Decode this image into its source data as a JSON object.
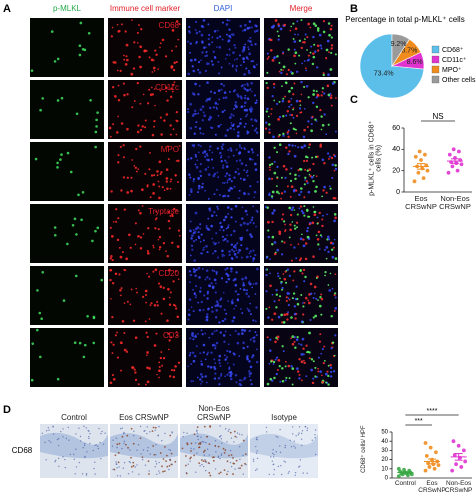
{
  "panel_labels": [
    "A",
    "B",
    "C",
    "D"
  ],
  "panel_a": {
    "column_headers": [
      "p-MLKL",
      "Immune cell marker",
      "DAPI",
      "Merge"
    ],
    "column_colors": [
      "#22a84a",
      "#e0202a",
      "#2f5fd8",
      "#e0202a"
    ],
    "row_markers": [
      "CD68",
      "CD11c",
      "MPO",
      "Tryptase",
      "CD20",
      "CD3"
    ]
  },
  "panel_d": {
    "row_label": "CD68",
    "column_headers": [
      "Control",
      "Eos CRSwNP",
      "Non-Eos CRSwNP",
      "Isotype"
    ]
  },
  "chart_data": [
    {
      "type": "pie",
      "title": "Percentage in total p-MLKL⁺ cells",
      "categories": [
        "CD68⁺",
        "CD11c⁺",
        "MPO⁺",
        "Other cells"
      ],
      "values": [
        73.4,
        8.6,
        8.7,
        9.2
      ],
      "value_labels": [
        "73.4%",
        "8.6%",
        "8.7%",
        "9.2%"
      ],
      "colors": [
        "#5bbfea",
        "#e033d0",
        "#f08c1e",
        "#9a9a9a"
      ],
      "legend": "right"
    },
    {
      "type": "scatter",
      "y_label": "p-MLKL⁺ cells in CD68⁺ cells (%)",
      "categories": [
        "Eos CRSwNP",
        "Non-Eos CRSwNP"
      ],
      "groups": [
        {
          "color": "#f08c1e",
          "values": [
            10,
            13,
            18,
            20,
            22,
            24,
            25,
            30,
            33,
            35,
            38
          ],
          "mean": 24,
          "sem": 2.6
        },
        {
          "color": "#e033d0",
          "values": [
            18,
            20,
            24,
            26,
            27,
            28,
            30,
            32,
            35,
            38,
            40
          ],
          "mean": 29,
          "sem": 2.1
        }
      ],
      "ylim": [
        0,
        60
      ],
      "yticks": [
        0,
        20,
        40,
        60
      ],
      "comparisons": [
        {
          "label": "NS",
          "between": [
            "Eos CRSwNP",
            "Non-Eos CRSwNP"
          ]
        }
      ]
    },
    {
      "type": "scatter",
      "y_label": "CD68⁺ cells/ HPF",
      "categories": [
        "Control",
        "Eos CRSwNP",
        "Non-Eos CRSwNP"
      ],
      "groups": [
        {
          "color": "#3aa845",
          "values": [
            2,
            3,
            4,
            4,
            5,
            5,
            6,
            6,
            7,
            8,
            9,
            10
          ],
          "mean": 6,
          "sem": 0.8
        },
        {
          "color": "#f08c1e",
          "values": [
            8,
            10,
            12,
            14,
            15,
            16,
            18,
            20,
            24,
            28,
            33,
            38
          ],
          "mean": 18,
          "sem": 2.6
        },
        {
          "color": "#e033d0",
          "values": [
            8,
            12,
            15,
            18,
            22,
            25,
            30,
            35,
            40
          ],
          "mean": 23,
          "sem": 3.6
        }
      ],
      "ylim": [
        0,
        50
      ],
      "yticks": [
        0,
        10,
        20,
        30,
        40,
        50
      ],
      "comparisons": [
        {
          "label": "***",
          "between": [
            "Control",
            "Eos CRSwNP"
          ]
        },
        {
          "label": "****",
          "between": [
            "Control",
            "Non-Eos CRSwNP"
          ]
        }
      ]
    }
  ]
}
